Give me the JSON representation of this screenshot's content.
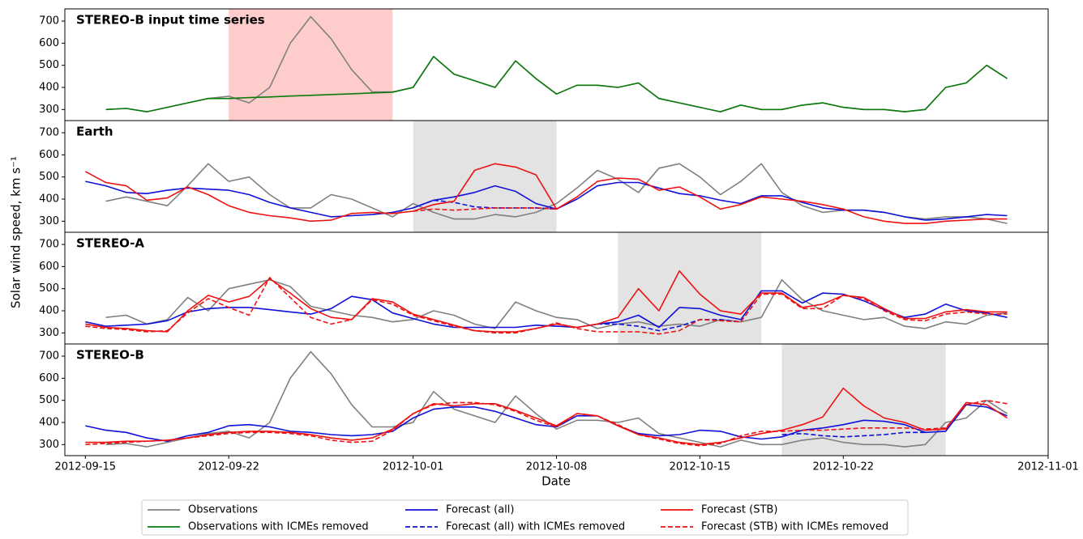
{
  "chart_data": {
    "type": "line",
    "y_label": "Solar wind speed, km s⁻¹",
    "x_label": "Date",
    "xlim": [
      "2012-09-14",
      "2012-11-01"
    ],
    "xticks": [
      "2012-09-15",
      "2012-09-22",
      "2012-10-01",
      "2012-10-08",
      "2012-10-15",
      "2012-10-22",
      "2012-11-01"
    ],
    "ylim": [
      250,
      755
    ],
    "yticks": [
      300,
      400,
      500,
      600,
      700
    ],
    "x": [
      "2012-09-15",
      "2012-09-16",
      "2012-09-17",
      "2012-09-18",
      "2012-09-19",
      "2012-09-20",
      "2012-09-21",
      "2012-09-22",
      "2012-09-23",
      "2012-09-24",
      "2012-09-25",
      "2012-09-26",
      "2012-09-27",
      "2012-09-28",
      "2012-09-29",
      "2012-09-30",
      "2012-10-01",
      "2012-10-02",
      "2012-10-03",
      "2012-10-04",
      "2012-10-05",
      "2012-10-06",
      "2012-10-07",
      "2012-10-08",
      "2012-10-09",
      "2012-10-10",
      "2012-10-11",
      "2012-10-12",
      "2012-10-13",
      "2012-10-14",
      "2012-10-15",
      "2012-10-16",
      "2012-10-17",
      "2012-10-18",
      "2012-10-19",
      "2012-10-20",
      "2012-10-21",
      "2012-10-22",
      "2012-10-23",
      "2012-10-24",
      "2012-10-25",
      "2012-10-26",
      "2012-10-27",
      "2012-10-28",
      "2012-10-29",
      "2012-10-30"
    ],
    "legend": [
      {
        "name": "Observations",
        "color": "#808080",
        "dash": false
      },
      {
        "name": "Observations with ICMEs removed",
        "color": "#0a7a0a",
        "dash": false
      },
      {
        "name": "Forecast (all)",
        "color": "#1010d8",
        "dash": false
      },
      {
        "name": "Forecast (all) with ICMEs removed",
        "color": "#1010d8",
        "dash": true
      },
      {
        "name": "Forecast (STB)",
        "color": "#ee1111",
        "dash": false
      },
      {
        "name": "Forecast (STB) with ICMEs removed",
        "color": "#ee1111",
        "dash": true
      }
    ],
    "panels": [
      {
        "title": "STEREO-B input time series",
        "shade": {
          "from": "2012-09-22",
          "to": "2012-09-30",
          "color": "#ffcccc"
        },
        "series": [
          {
            "legend": 0,
            "values": [
              null,
              300,
              305,
              290,
              310,
              330,
              350,
              360,
              330,
              400,
              600,
              720,
              620,
              480,
              380,
              380,
              400,
              540,
              460,
              430,
              400,
              520,
              440,
              370,
              410,
              410,
              400,
              420,
              350,
              330,
              310,
              290,
              320,
              300,
              300,
              320,
              330,
              310,
              300,
              300,
              290,
              300,
              400,
              420,
              500,
              440
            ]
          },
          {
            "legend": 1,
            "values": [
              null,
              300,
              305,
              290,
              310,
              330,
              350,
              350,
              354,
              357,
              361,
              364,
              368,
              371,
              375,
              378,
              400,
              540,
              460,
              430,
              400,
              520,
              440,
              370,
              410,
              410,
              400,
              420,
              350,
              330,
              310,
              290,
              320,
              300,
              300,
              320,
              330,
              310,
              300,
              300,
              290,
              300,
              400,
              420,
              500,
              440
            ]
          }
        ]
      },
      {
        "title": "Earth",
        "shade": {
          "from": "2012-10-01",
          "to": "2012-10-08",
          "color": "#e3e3e3"
        },
        "series": [
          {
            "legend": 0,
            "values": [
              null,
              390,
              410,
              390,
              370,
              460,
              560,
              480,
              500,
              420,
              360,
              360,
              420,
              400,
              360,
              320,
              380,
              340,
              310,
              310,
              330,
              320,
              340,
              380,
              450,
              530,
              490,
              430,
              540,
              560,
              500,
              420,
              480,
              560,
              430,
              370,
              340,
              350,
              350,
              340,
              320,
              310,
              320,
              320,
              310,
              290
            ]
          },
          {
            "legend": 2,
            "values": [
              480,
              460,
              430,
              425,
              440,
              450,
              445,
              440,
              420,
              385,
              360,
              340,
              320,
              325,
              330,
              340,
              360,
              395,
              410,
              430,
              460,
              435,
              380,
              355,
              400,
              460,
              475,
              475,
              450,
              425,
              415,
              395,
              380,
              415,
              415,
              385,
              360,
              350,
              350,
              340,
              320,
              305,
              310,
              320,
              330,
              325
            ]
          },
          {
            "legend": 3,
            "values": [
              null,
              null,
              null,
              null,
              null,
              null,
              null,
              null,
              null,
              null,
              null,
              null,
              null,
              null,
              null,
              null,
              360,
              395,
              385,
              365,
              360,
              360,
              360,
              355,
              null,
              null,
              null,
              null,
              null,
              null,
              null,
              null,
              null,
              null,
              null,
              null,
              null,
              null,
              null,
              null,
              null,
              null,
              null,
              null,
              null,
              null
            ]
          },
          {
            "legend": 4,
            "values": [
              525,
              475,
              460,
              395,
              405,
              455,
              420,
              370,
              340,
              325,
              315,
              300,
              305,
              335,
              340,
              335,
              345,
              375,
              390,
              530,
              560,
              545,
              510,
              355,
              410,
              480,
              495,
              490,
              440,
              455,
              410,
              355,
              375,
              410,
              400,
              390,
              375,
              355,
              320,
              300,
              290,
              290,
              300,
              305,
              310,
              310
            ]
          },
          {
            "legend": 5,
            "values": [
              null,
              null,
              null,
              null,
              null,
              null,
              null,
              null,
              null,
              null,
              null,
              null,
              null,
              null,
              null,
              null,
              345,
              355,
              350,
              355,
              360,
              360,
              360,
              355,
              null,
              null,
              null,
              null,
              null,
              null,
              null,
              null,
              null,
              null,
              null,
              null,
              null,
              null,
              null,
              null,
              null,
              null,
              null,
              null,
              null,
              null
            ]
          }
        ]
      },
      {
        "title": "STEREO-A",
        "shade": {
          "from": "2012-10-11",
          "to": "2012-10-18",
          "color": "#e3e3e3"
        },
        "series": [
          {
            "legend": 0,
            "values": [
              null,
              370,
              380,
              340,
              360,
              460,
              400,
              500,
              520,
              540,
              510,
              420,
              400,
              380,
              370,
              350,
              360,
              400,
              380,
              340,
              320,
              440,
              400,
              370,
              360,
              320,
              340,
              350,
              330,
              340,
              330,
              360,
              350,
              370,
              540,
              450,
              400,
              380,
              360,
              370,
              330,
              320,
              350,
              340,
              380,
              390
            ]
          },
          {
            "legend": 2,
            "values": [
              350,
              330,
              335,
              340,
              355,
              395,
              410,
              415,
              415,
              405,
              395,
              385,
              410,
              465,
              450,
              390,
              365,
              340,
              325,
              325,
              325,
              325,
              335,
              330,
              325,
              340,
              350,
              380,
              325,
              415,
              410,
              380,
              360,
              490,
              490,
              435,
              480,
              475,
              445,
              405,
              370,
              385,
              430,
              400,
              390,
              370
            ]
          },
          {
            "legend": 3,
            "values": [
              null,
              null,
              null,
              null,
              null,
              null,
              null,
              null,
              null,
              null,
              null,
              null,
              null,
              null,
              null,
              null,
              null,
              null,
              null,
              null,
              null,
              null,
              null,
              null,
              null,
              340,
              340,
              330,
              310,
              330,
              360,
              360,
              350,
              null,
              null,
              null,
              null,
              null,
              null,
              null,
              null,
              null,
              null,
              null,
              null,
              null
            ]
          },
          {
            "legend": 4,
            "values": [
              340,
              325,
              320,
              310,
              305,
              400,
              470,
              440,
              465,
              545,
              480,
              410,
              370,
              360,
              455,
              440,
              385,
              360,
              335,
              310,
              305,
              305,
              320,
              340,
              325,
              340,
              370,
              500,
              400,
              580,
              475,
              400,
              385,
              480,
              480,
              415,
              430,
              470,
              460,
              410,
              365,
              365,
              395,
              405,
              395,
              395
            ]
          },
          {
            "legend": 5,
            "values": [
              330,
              320,
              315,
              305,
              310,
              390,
              455,
              415,
              380,
              550,
              460,
              370,
              340,
              360,
              450,
              430,
              380,
              355,
              330,
              310,
              300,
              300,
              320,
              345,
              320,
              305,
              305,
              305,
              295,
              310,
              360,
              355,
              350,
              475,
              475,
              410,
              410,
              470,
              455,
              400,
              360,
              355,
              385,
              395,
              385,
              385
            ]
          }
        ]
      },
      {
        "title": "STEREO-B",
        "shade": {
          "from": "2012-10-19",
          "to": "2012-10-27",
          "color": "#e3e3e3"
        },
        "series": [
          {
            "legend": 0,
            "values": [
              null,
              300,
              305,
              290,
              310,
              330,
              350,
              360,
              330,
              400,
              600,
              720,
              620,
              480,
              380,
              380,
              400,
              540,
              460,
              430,
              400,
              520,
              440,
              370,
              410,
              410,
              400,
              420,
              350,
              330,
              310,
              290,
              320,
              300,
              300,
              320,
              330,
              310,
              300,
              300,
              290,
              300,
              400,
              420,
              500,
              440
            ]
          },
          {
            "legend": 2,
            "values": [
              385,
              365,
              355,
              330,
              315,
              340,
              355,
              385,
              390,
              380,
              360,
              355,
              345,
              340,
              345,
              360,
              420,
              460,
              470,
              470,
              450,
              420,
              390,
              380,
              430,
              430,
              385,
              350,
              340,
              345,
              365,
              360,
              335,
              325,
              335,
              365,
              375,
              390,
              410,
              405,
              390,
              355,
              360,
              480,
              470,
              430
            ]
          },
          {
            "legend": 3,
            "values": [
              null,
              null,
              null,
              null,
              null,
              null,
              null,
              null,
              null,
              null,
              null,
              null,
              null,
              null,
              null,
              null,
              null,
              null,
              null,
              null,
              null,
              null,
              null,
              null,
              null,
              null,
              null,
              null,
              null,
              null,
              null,
              null,
              null,
              null,
              345,
              350,
              340,
              335,
              340,
              345,
              355,
              355,
              null,
              null,
              null,
              null
            ]
          },
          {
            "legend": 4,
            "values": [
              310,
              310,
              315,
              315,
              320,
              330,
              345,
              355,
              360,
              360,
              355,
              345,
              330,
              320,
              330,
              370,
              440,
              485,
              475,
              485,
              485,
              455,
              420,
              385,
              440,
              430,
              385,
              345,
              330,
              310,
              300,
              310,
              330,
              350,
              365,
              390,
              425,
              555,
              475,
              420,
              400,
              365,
              370,
              490,
              480,
              420
            ]
          },
          {
            "legend": 5,
            "values": [
              300,
              305,
              310,
              315,
              320,
              330,
              340,
              350,
              355,
              355,
              350,
              340,
              320,
              310,
              315,
              365,
              440,
              480,
              490,
              490,
              480,
              450,
              410,
              380,
              440,
              430,
              390,
              345,
              325,
              305,
              295,
              305,
              340,
              360,
              360,
              365,
              365,
              370,
              375,
              375,
              375,
              370,
              375,
              480,
              500,
              485
            ]
          }
        ]
      }
    ]
  }
}
